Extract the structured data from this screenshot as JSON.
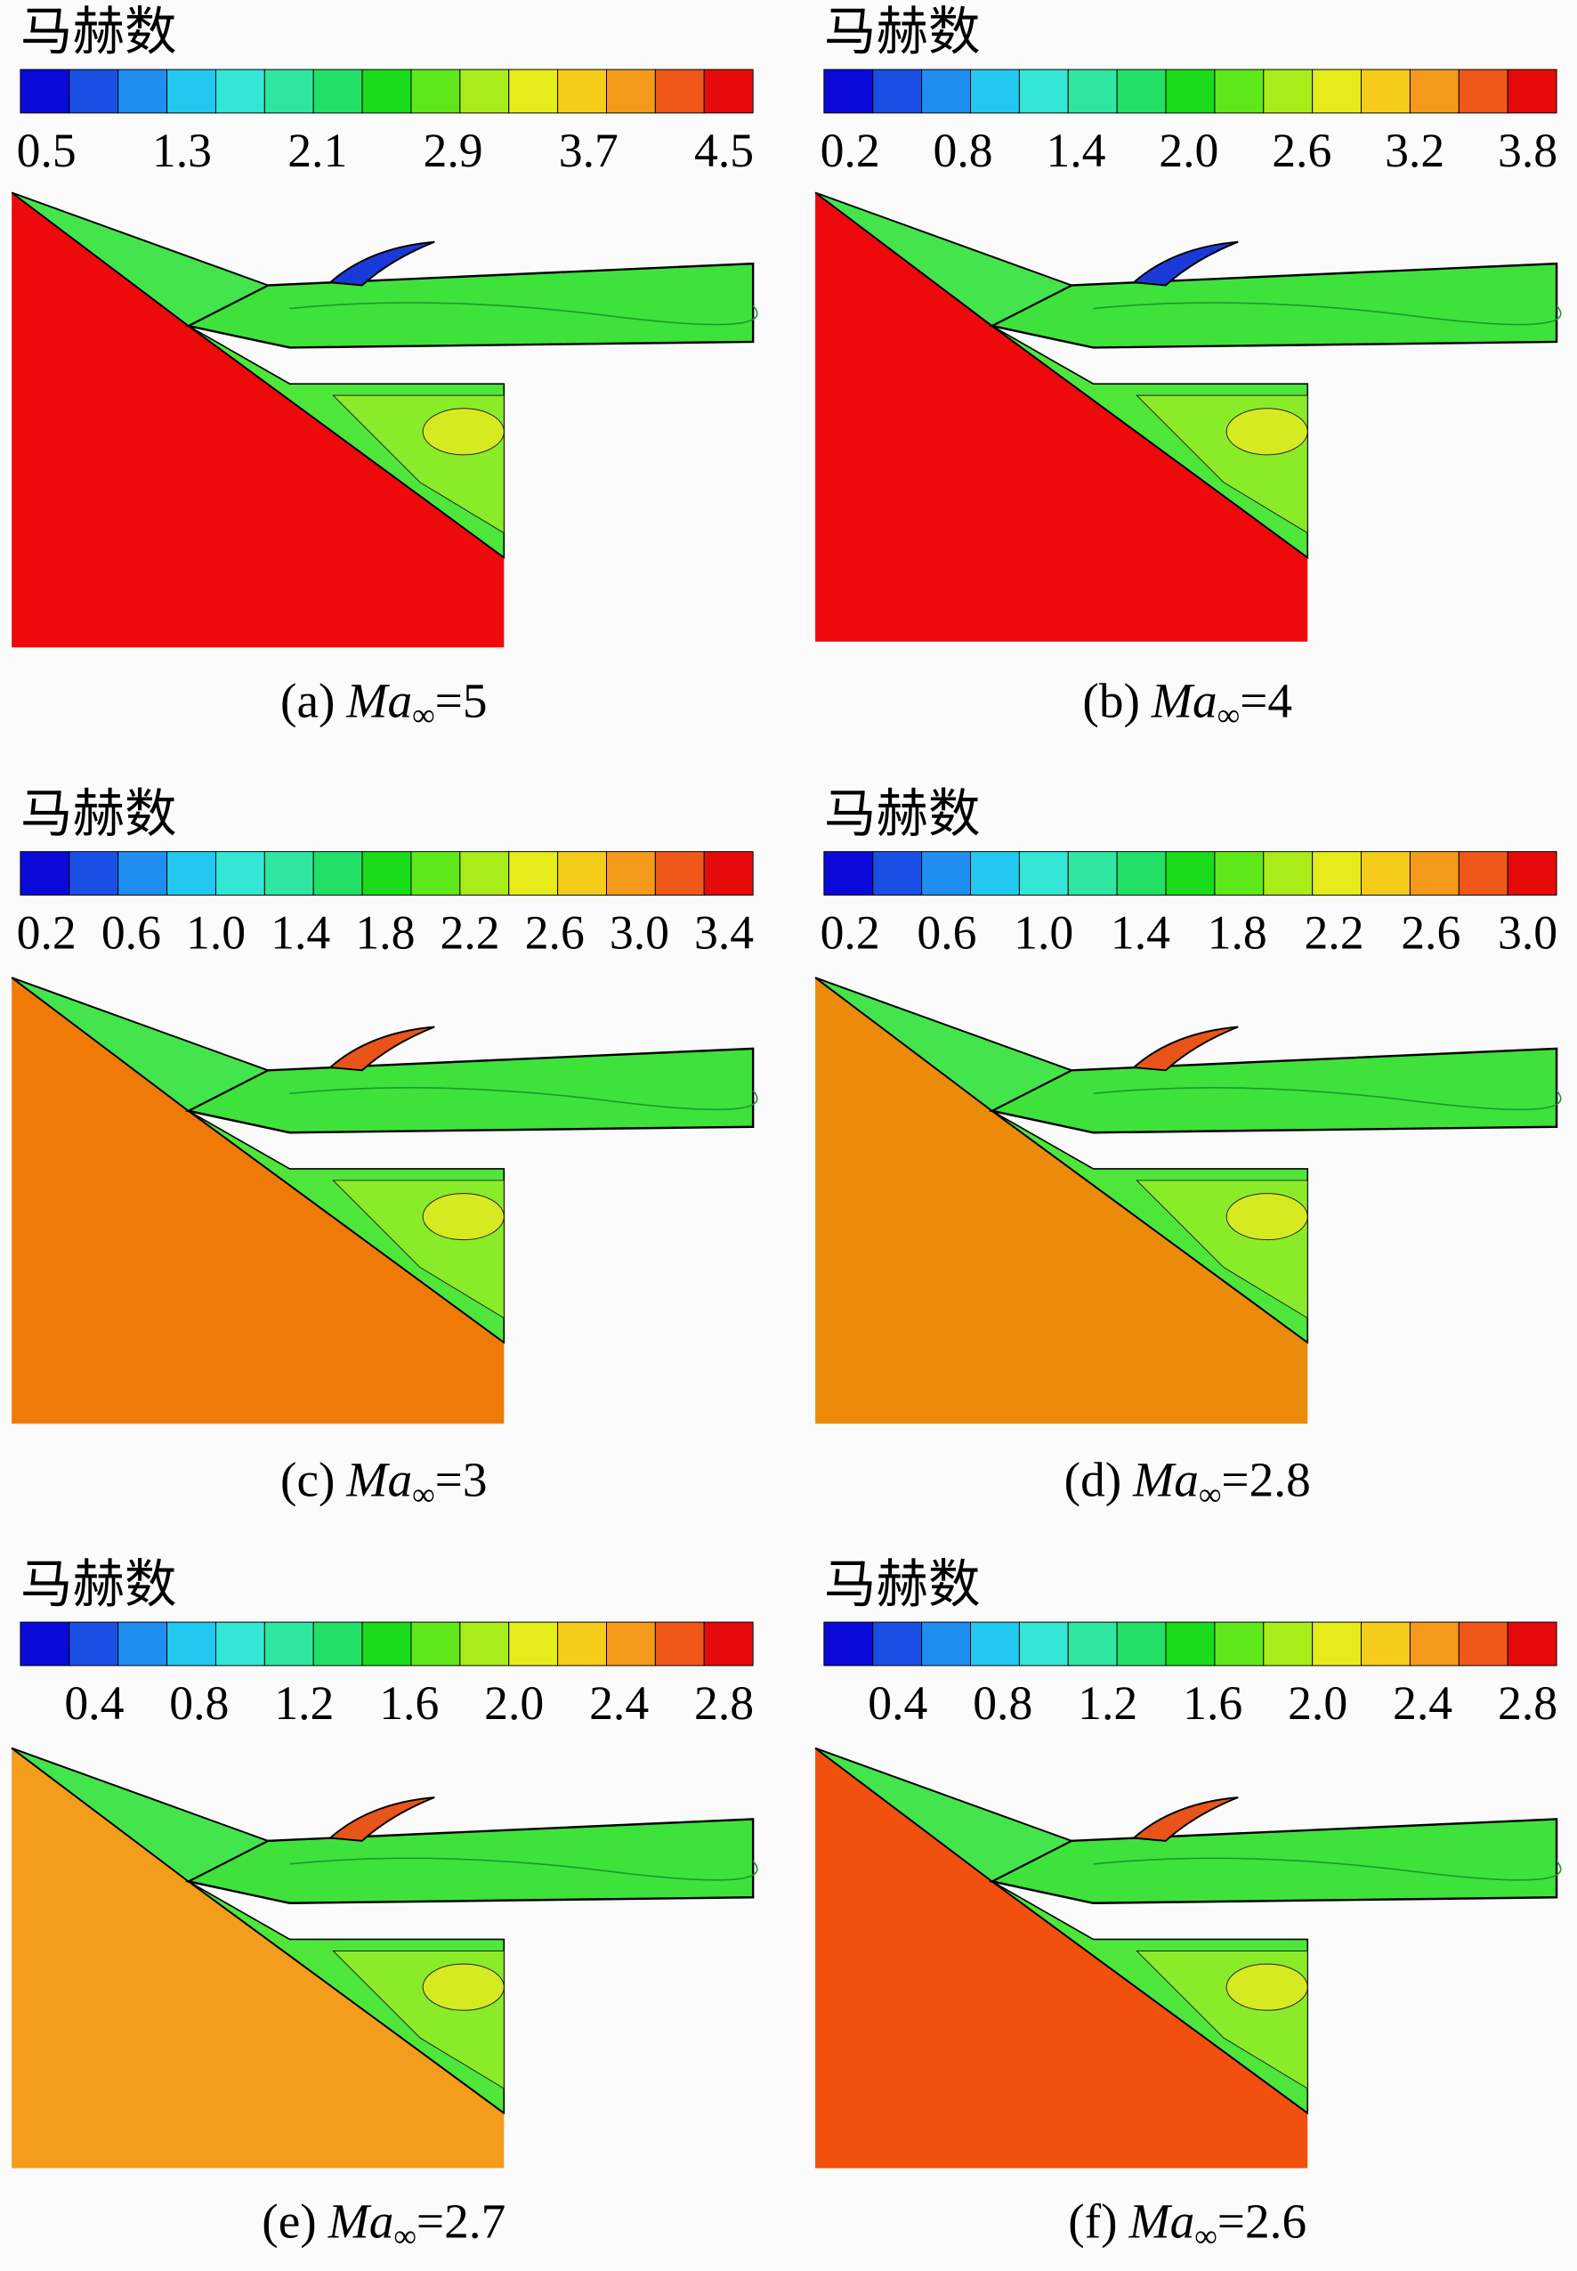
{
  "panels": [
    {
      "colorbar_title": "马赫数",
      "ticks": [
        "0.5",
        "1.3",
        "2.1",
        "2.9",
        "3.7",
        "4.5"
      ],
      "caption": {
        "label": "(a)",
        "symbol": "Ma",
        "subscript": "∞",
        "value": "=5"
      }
    },
    {
      "colorbar_title": "马赫数",
      "ticks": [
        "0.2",
        "0.8",
        "1.4",
        "2.0",
        "2.6",
        "3.2",
        "3.8"
      ],
      "caption": {
        "label": "(b)",
        "symbol": "Ma",
        "subscript": "∞",
        "value": "=4"
      }
    },
    {
      "colorbar_title": "马赫数",
      "ticks": [
        "0.2",
        "0.6",
        "1.0",
        "1.4",
        "1.8",
        "2.2",
        "2.6",
        "3.0",
        "3.4"
      ],
      "caption": {
        "label": "(c)",
        "symbol": "Ma",
        "subscript": "∞",
        "value": "=3"
      }
    },
    {
      "colorbar_title": "马赫数",
      "ticks": [
        "0.2",
        "0.6",
        "1.0",
        "1.4",
        "1.8",
        "2.2",
        "2.6",
        "3.0"
      ],
      "caption": {
        "label": "(d)",
        "symbol": "Ma",
        "subscript": "∞",
        "value": "=2.8"
      }
    },
    {
      "colorbar_title": "马赫数",
      "ticks": [
        "0.4",
        "0.8",
        "1.2",
        "1.6",
        "2.0",
        "2.4",
        "2.8"
      ],
      "caption": {
        "label": "(e)",
        "symbol": "Ma",
        "subscript": "∞",
        "value": "=2.7"
      }
    },
    {
      "colorbar_title": "马赫数",
      "ticks": [
        "0.4",
        "0.8",
        "1.2",
        "1.6",
        "2.0",
        "2.4",
        "2.8"
      ],
      "caption": {
        "label": "(f)",
        "symbol": "Ma",
        "subscript": "∞",
        "value": "=2.6"
      }
    }
  ]
}
